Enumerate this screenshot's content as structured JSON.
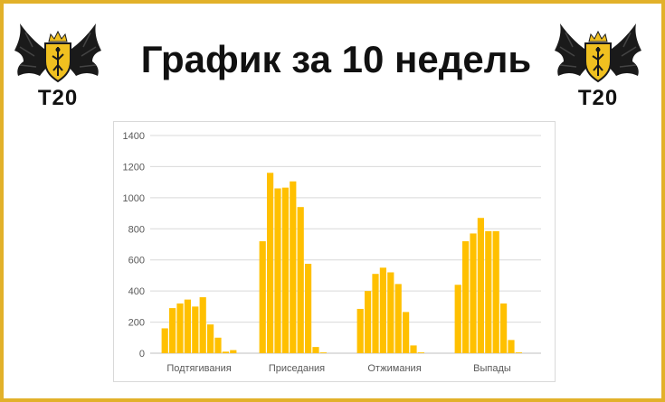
{
  "header": {
    "title": "График за 10 недель",
    "logo_text": "T20"
  },
  "colors": {
    "frame": "#e2b12a",
    "bar": "#ffc000",
    "grid": "#d9d9d9",
    "logo_shield": "#f0c020",
    "logo_wings": "#1a1a1a"
  },
  "icons": {
    "left_logo": "winged-shield-logo-icon",
    "right_logo": "winged-shield-logo-icon"
  },
  "chart_data": {
    "type": "bar",
    "categories": [
      "Подтягивания",
      "Приседания",
      "Отжимания",
      "Выпады"
    ],
    "series": [
      {
        "values": [
          160,
          720,
          285,
          440
        ]
      },
      {
        "values": [
          290,
          1160,
          400,
          720
        ]
      },
      {
        "values": [
          320,
          1060,
          510,
          770
        ]
      },
      {
        "values": [
          345,
          1065,
          550,
          870
        ]
      },
      {
        "values": [
          300,
          1105,
          520,
          785
        ]
      },
      {
        "values": [
          360,
          940,
          445,
          785
        ]
      },
      {
        "values": [
          185,
          575,
          265,
          320
        ]
      },
      {
        "values": [
          100,
          40,
          50,
          85
        ]
      },
      {
        "values": [
          10,
          5,
          5,
          5
        ]
      },
      {
        "values": [
          20,
          0,
          0,
          0
        ]
      }
    ],
    "ylim": [
      0,
      1400
    ],
    "yticks": [
      0,
      200,
      400,
      600,
      800,
      1000,
      1200,
      1400
    ],
    "grid": true,
    "legend": "none"
  }
}
